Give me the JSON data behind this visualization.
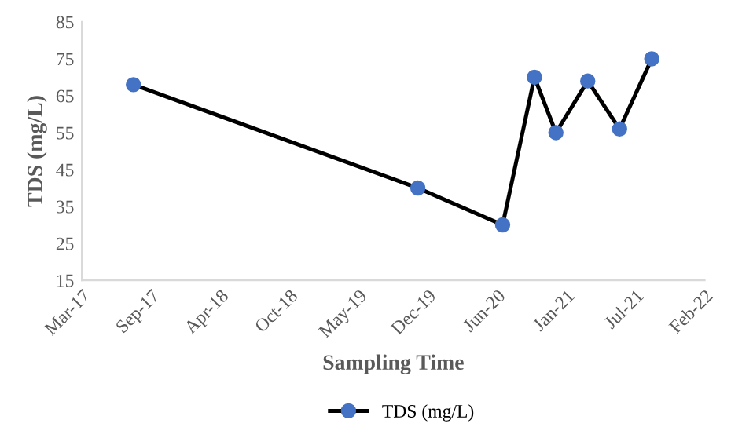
{
  "chart_data": {
    "type": "line",
    "xlabel": "Sampling Time",
    "ylabel": "TDS (mg/L)",
    "x": [
      "2017-08-06",
      "2019-11-06",
      "2020-07-08",
      "2020-10-08",
      "2020-12-09",
      "2021-03-11",
      "2021-06-11",
      "2021-09-12"
    ],
    "series": [
      {
        "name": "TDS (mg/L)",
        "color": "#000000",
        "colors": [
          "#4472c4",
          "#4472c4",
          "#4472c4",
          "#4472c4",
          "#4472c4",
          "#4472c4",
          "#4472c4",
          "#4472c4"
        ],
        "values": [
          68,
          40,
          30,
          70,
          55,
          69,
          56,
          75
        ]
      }
    ],
    "xlim": [
      "2017-03-10",
      "2022-02-12"
    ],
    "xticks": [
      {
        "value": "2017-03-10",
        "label": "Mar-17"
      },
      {
        "value": "2017-09-26",
        "label": "Sep-17"
      },
      {
        "value": "2018-04-14",
        "label": "Apr-18"
      },
      {
        "value": "2018-10-31",
        "label": "Oct-18"
      },
      {
        "value": "2019-05-19",
        "label": "May-19"
      },
      {
        "value": "2019-12-05",
        "label": "Dec-19"
      },
      {
        "value": "2020-06-22",
        "label": "Jun-20"
      },
      {
        "value": "2021-01-08",
        "label": "Jan-21"
      },
      {
        "value": "2021-07-27",
        "label": "Jul-21"
      },
      {
        "value": "2022-02-12",
        "label": "Feb-22"
      }
    ],
    "ylim": [
      15,
      85
    ],
    "yticks": [
      15,
      25,
      35,
      45,
      55,
      65,
      75,
      85
    ],
    "grid": false,
    "legend": "bottom",
    "marker": "circle",
    "line_style": "solid"
  }
}
